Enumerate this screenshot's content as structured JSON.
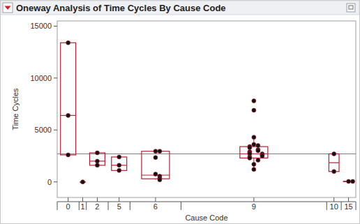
{
  "chart_data": {
    "type": "box",
    "title": "Oneway Analysis of Time Cycles By Cause Code",
    "x_label": "Cause Code",
    "y_label": "Time Cycles",
    "categories": [
      "0",
      "1",
      "2",
      "5",
      "6",
      "9",
      "10",
      "15"
    ],
    "points": [
      [
        13400,
        6400,
        2600
      ],
      [
        0
      ],
      [
        2800,
        2000,
        1600
      ],
      [
        2400,
        1600,
        1100
      ],
      [
        2950,
        2950,
        2350,
        750,
        550,
        350,
        200
      ],
      [
        7800,
        6900,
        4300,
        3600,
        3500,
        3400,
        3300,
        3100,
        3000,
        2900,
        2800,
        2700,
        2700,
        2600,
        2500,
        2400,
        2300,
        2100,
        1700,
        1200
      ],
      [
        2700,
        1000
      ],
      [
        50,
        50
      ]
    ],
    "boxes": [
      {
        "min": 2600,
        "q1": 2600,
        "median": 6400,
        "q3": 13400,
        "max": 13400
      },
      {
        "min": 0,
        "q1": 0,
        "median": 0,
        "q3": 0,
        "max": 0
      },
      {
        "min": 1600,
        "q1": 1600,
        "median": 2000,
        "q3": 2800,
        "max": 2800
      },
      {
        "min": 1100,
        "q1": 1100,
        "median": 1600,
        "q3": 2400,
        "max": 2400
      },
      {
        "min": 200,
        "q1": 300,
        "median": 650,
        "q3": 2950,
        "max": 2950
      },
      {
        "min": 1200,
        "q1": 2300,
        "median": 2700,
        "q3": 3400,
        "max": 4300
      },
      {
        "min": 1000,
        "q1": 1000,
        "median": 1850,
        "q3": 2700,
        "max": 2700
      },
      {
        "min": 50,
        "q1": 50,
        "median": 50,
        "q3": 50,
        "max": 50
      }
    ],
    "reference_line": 2700,
    "color": "#b22234",
    "ylim": [
      -1500,
      15500
    ],
    "yticks": [
      0,
      5000,
      10000,
      15000
    ],
    "grid": false
  }
}
